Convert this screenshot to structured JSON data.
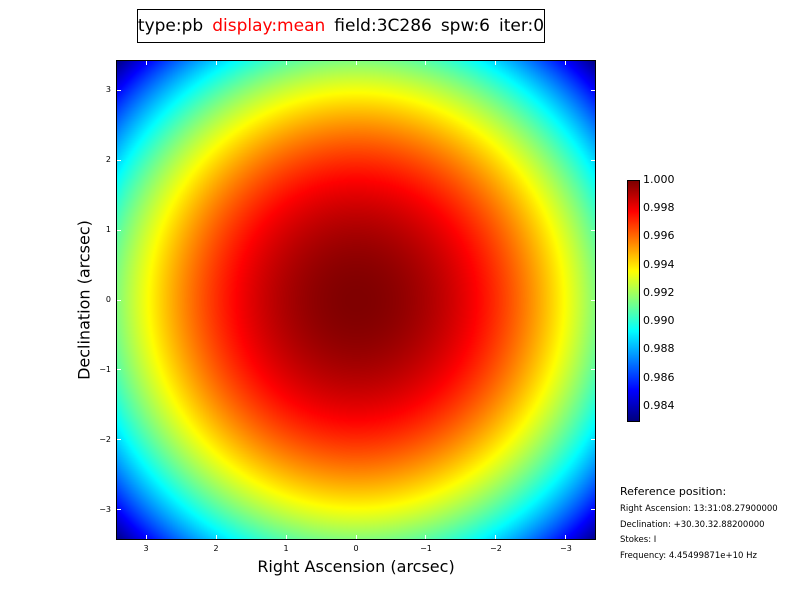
{
  "title": {
    "parts": [
      {
        "text": "type:pb",
        "color": "#000000"
      },
      {
        "text": "display:mean",
        "color": "#ff0000"
      },
      {
        "text": "field:3C286",
        "color": "#000000"
      },
      {
        "text": "spw:6",
        "color": "#000000"
      },
      {
        "text": "iter:0",
        "color": "#000000"
      }
    ]
  },
  "chart_data": {
    "type": "heatmap",
    "xlabel": "Right Ascension (arcsec)",
    "ylabel": "Declination (arcsec)",
    "xlim": [
      3.43,
      -3.43
    ],
    "ylim": [
      -3.43,
      3.43
    ],
    "xticks": [
      3,
      2,
      1,
      0,
      -1,
      -2,
      -3
    ],
    "xtick_labels": [
      "3",
      "2",
      "1",
      "0",
      "−1",
      "−2",
      "−3"
    ],
    "yticks": [
      3,
      2,
      1,
      0,
      -1,
      -2,
      -3
    ],
    "ytick_labels": [
      "3",
      "2",
      "1",
      "0",
      "−1",
      "−2",
      "−3"
    ],
    "colormap": "jet",
    "value_range": [
      0.983,
      1.0
    ],
    "peak_value": 1.0,
    "peak_position": [
      0,
      0
    ],
    "corner_value": 0.983,
    "colorbar_ticks": [
      1.0,
      0.998,
      0.996,
      0.994,
      0.992,
      0.99,
      0.988,
      0.986,
      0.984
    ],
    "colorbar_labels": [
      "1.000",
      "0.998",
      "0.996",
      "0.994",
      "0.992",
      "0.990",
      "0.988",
      "0.986",
      "0.984"
    ]
  },
  "reference": {
    "heading": "Reference position:",
    "ra": "Right Ascension: 13:31:08.27900000",
    "dec": "Declination: +30.30.32.88200000",
    "stokes": "Stokes: I",
    "freq": "Frequency: 4.45499871e+10 Hz"
  }
}
